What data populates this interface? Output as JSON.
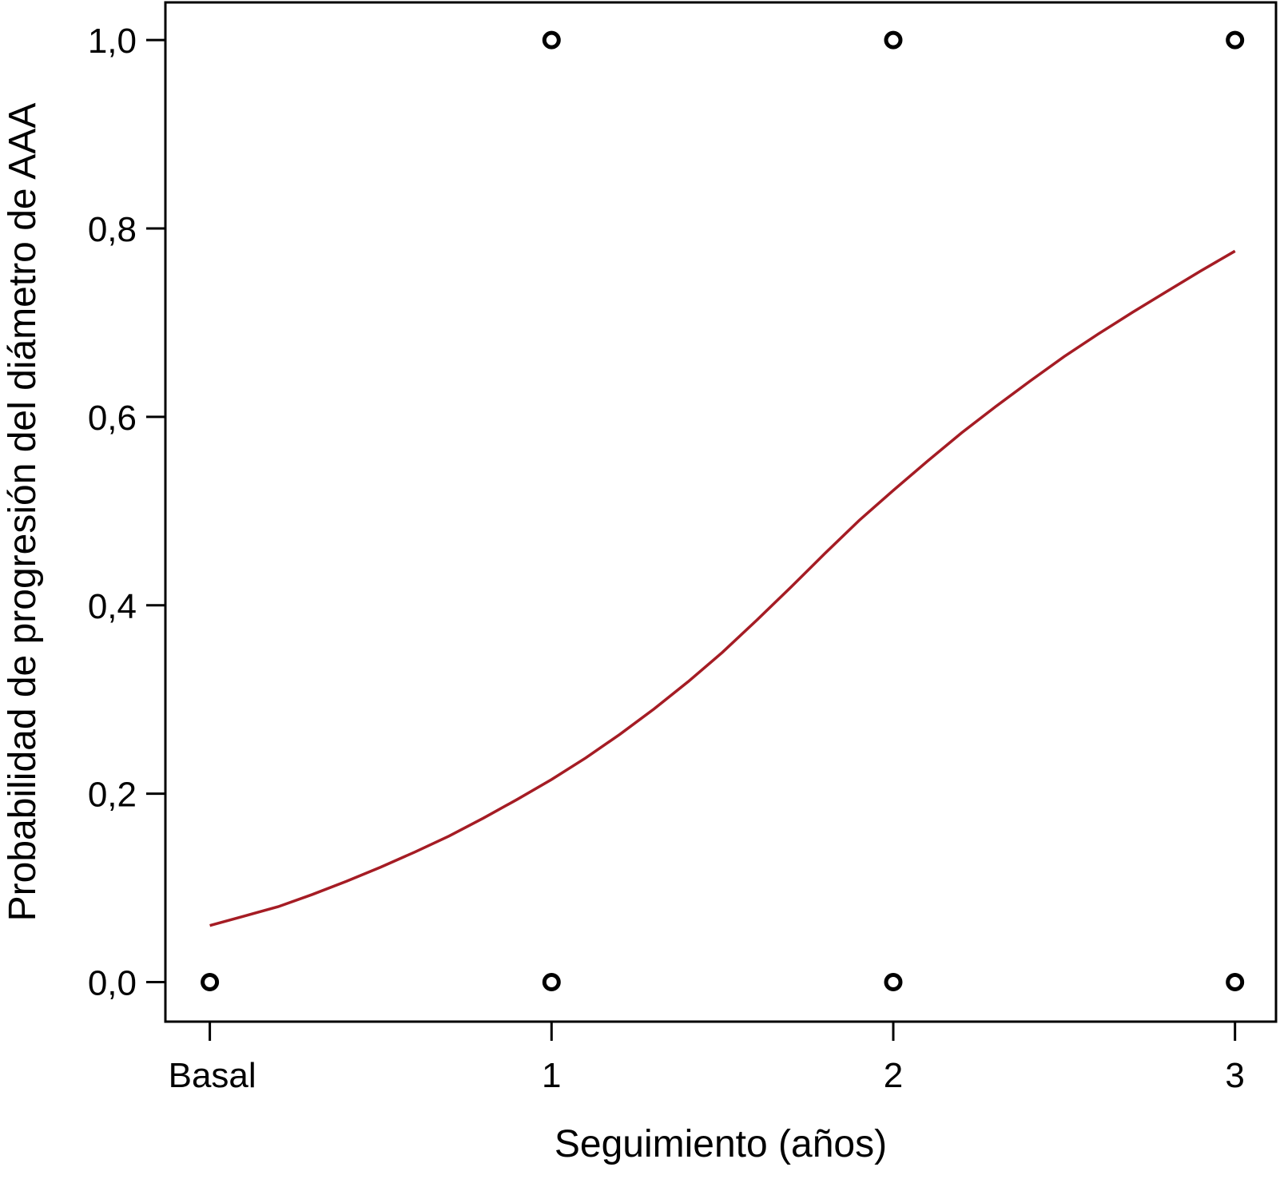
{
  "chart_data": {
    "type": "scatter",
    "title": "",
    "xlabel": "Seguimiento (años)",
    "ylabel": "Probabilidad de progresión del diámetro de AAA",
    "xlim": [
      -0.13,
      3.12
    ],
    "ylim": [
      -0.042,
      1.04
    ],
    "x_ticks": [
      {
        "value": 0,
        "label": "Basal"
      },
      {
        "value": 1,
        "label": "1"
      },
      {
        "value": 2,
        "label": "2"
      },
      {
        "value": 3,
        "label": "3"
      }
    ],
    "y_ticks": [
      {
        "value": 0.0,
        "label": "0,0"
      },
      {
        "value": 0.2,
        "label": "0,2"
      },
      {
        "value": 0.4,
        "label": "0,4"
      },
      {
        "value": 0.6,
        "label": "0,6"
      },
      {
        "value": 0.8,
        "label": "0,8"
      },
      {
        "value": 1.0,
        "label": "1,0"
      }
    ],
    "grid": false,
    "legend": "none",
    "points": [
      {
        "x": 0,
        "y": 0
      },
      {
        "x": 1,
        "y": 0
      },
      {
        "x": 2,
        "y": 0
      },
      {
        "x": 3,
        "y": 0
      },
      {
        "x": 1,
        "y": 1
      },
      {
        "x": 2,
        "y": 1
      },
      {
        "x": 3,
        "y": 1
      }
    ],
    "curve": {
      "color": "#a51c24",
      "x": [
        0,
        0.1,
        0.2,
        0.3,
        0.4,
        0.5,
        0.6,
        0.7,
        0.8,
        0.9,
        1.0,
        1.1,
        1.2,
        1.3,
        1.4,
        1.5,
        1.6,
        1.7,
        1.8,
        1.9,
        2.0,
        2.1,
        2.2,
        2.3,
        2.4,
        2.5,
        2.6,
        2.7,
        2.8,
        2.9,
        3.0
      ],
      "y": [
        0.06,
        0.07,
        0.08,
        0.093,
        0.107,
        0.122,
        0.138,
        0.155,
        0.174,
        0.194,
        0.215,
        0.238,
        0.263,
        0.29,
        0.319,
        0.35,
        0.384,
        0.419,
        0.455,
        0.49,
        0.522,
        0.553,
        0.583,
        0.611,
        0.638,
        0.664,
        0.688,
        0.711,
        0.733,
        0.755,
        0.776
      ]
    }
  }
}
